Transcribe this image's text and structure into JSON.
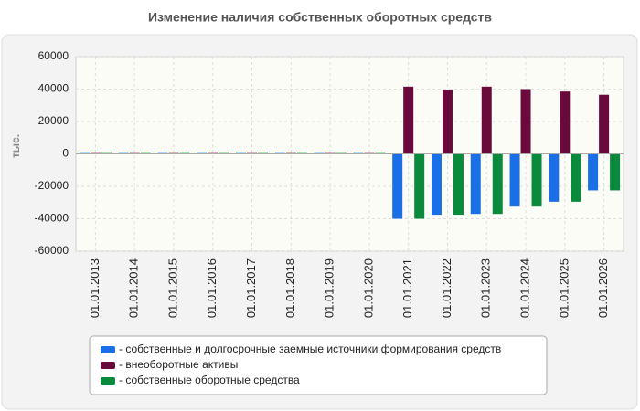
{
  "chart_data": {
    "type": "bar",
    "title": "Изменение наличия собственных оборотных средств",
    "ylabel": "тыс.",
    "categories": [
      "01.01.2013",
      "01.01.2014",
      "01.01.2015",
      "01.01.2016",
      "01.01.2017",
      "01.01.2018",
      "01.01.2019",
      "01.01.2020",
      "01.01.2021",
      "01.01.2022",
      "01.01.2023",
      "01.01.2024",
      "01.01.2025",
      "01.01.2026"
    ],
    "series": [
      {
        "name": "- собственные и долгосрочные заемные источники формирования средств",
        "color": "#1a6fe6",
        "values": [
          1000,
          1000,
          1000,
          1000,
          1000,
          1000,
          1000,
          1000,
          -40000,
          -37500,
          -37000,
          -32500,
          -29500,
          -22500
        ]
      },
      {
        "name": "- внеоборотные активы",
        "color": "#6a0a3c",
        "values": [
          1000,
          1000,
          1000,
          1000,
          1000,
          1000,
          1000,
          1000,
          41500,
          39500,
          41500,
          40000,
          38500,
          36500
        ]
      },
      {
        "name": "- собственные оборотные средства",
        "color": "#0a8a3c",
        "values": [
          1000,
          1000,
          1000,
          1000,
          1000,
          1000,
          1000,
          1000,
          -40000,
          -37500,
          -37000,
          -32500,
          -29500,
          -22500
        ]
      }
    ],
    "ylim": [
      -60000,
      60000
    ],
    "yticks": [
      -60000,
      -40000,
      -20000,
      0,
      20000,
      40000,
      60000
    ],
    "grid": true
  }
}
